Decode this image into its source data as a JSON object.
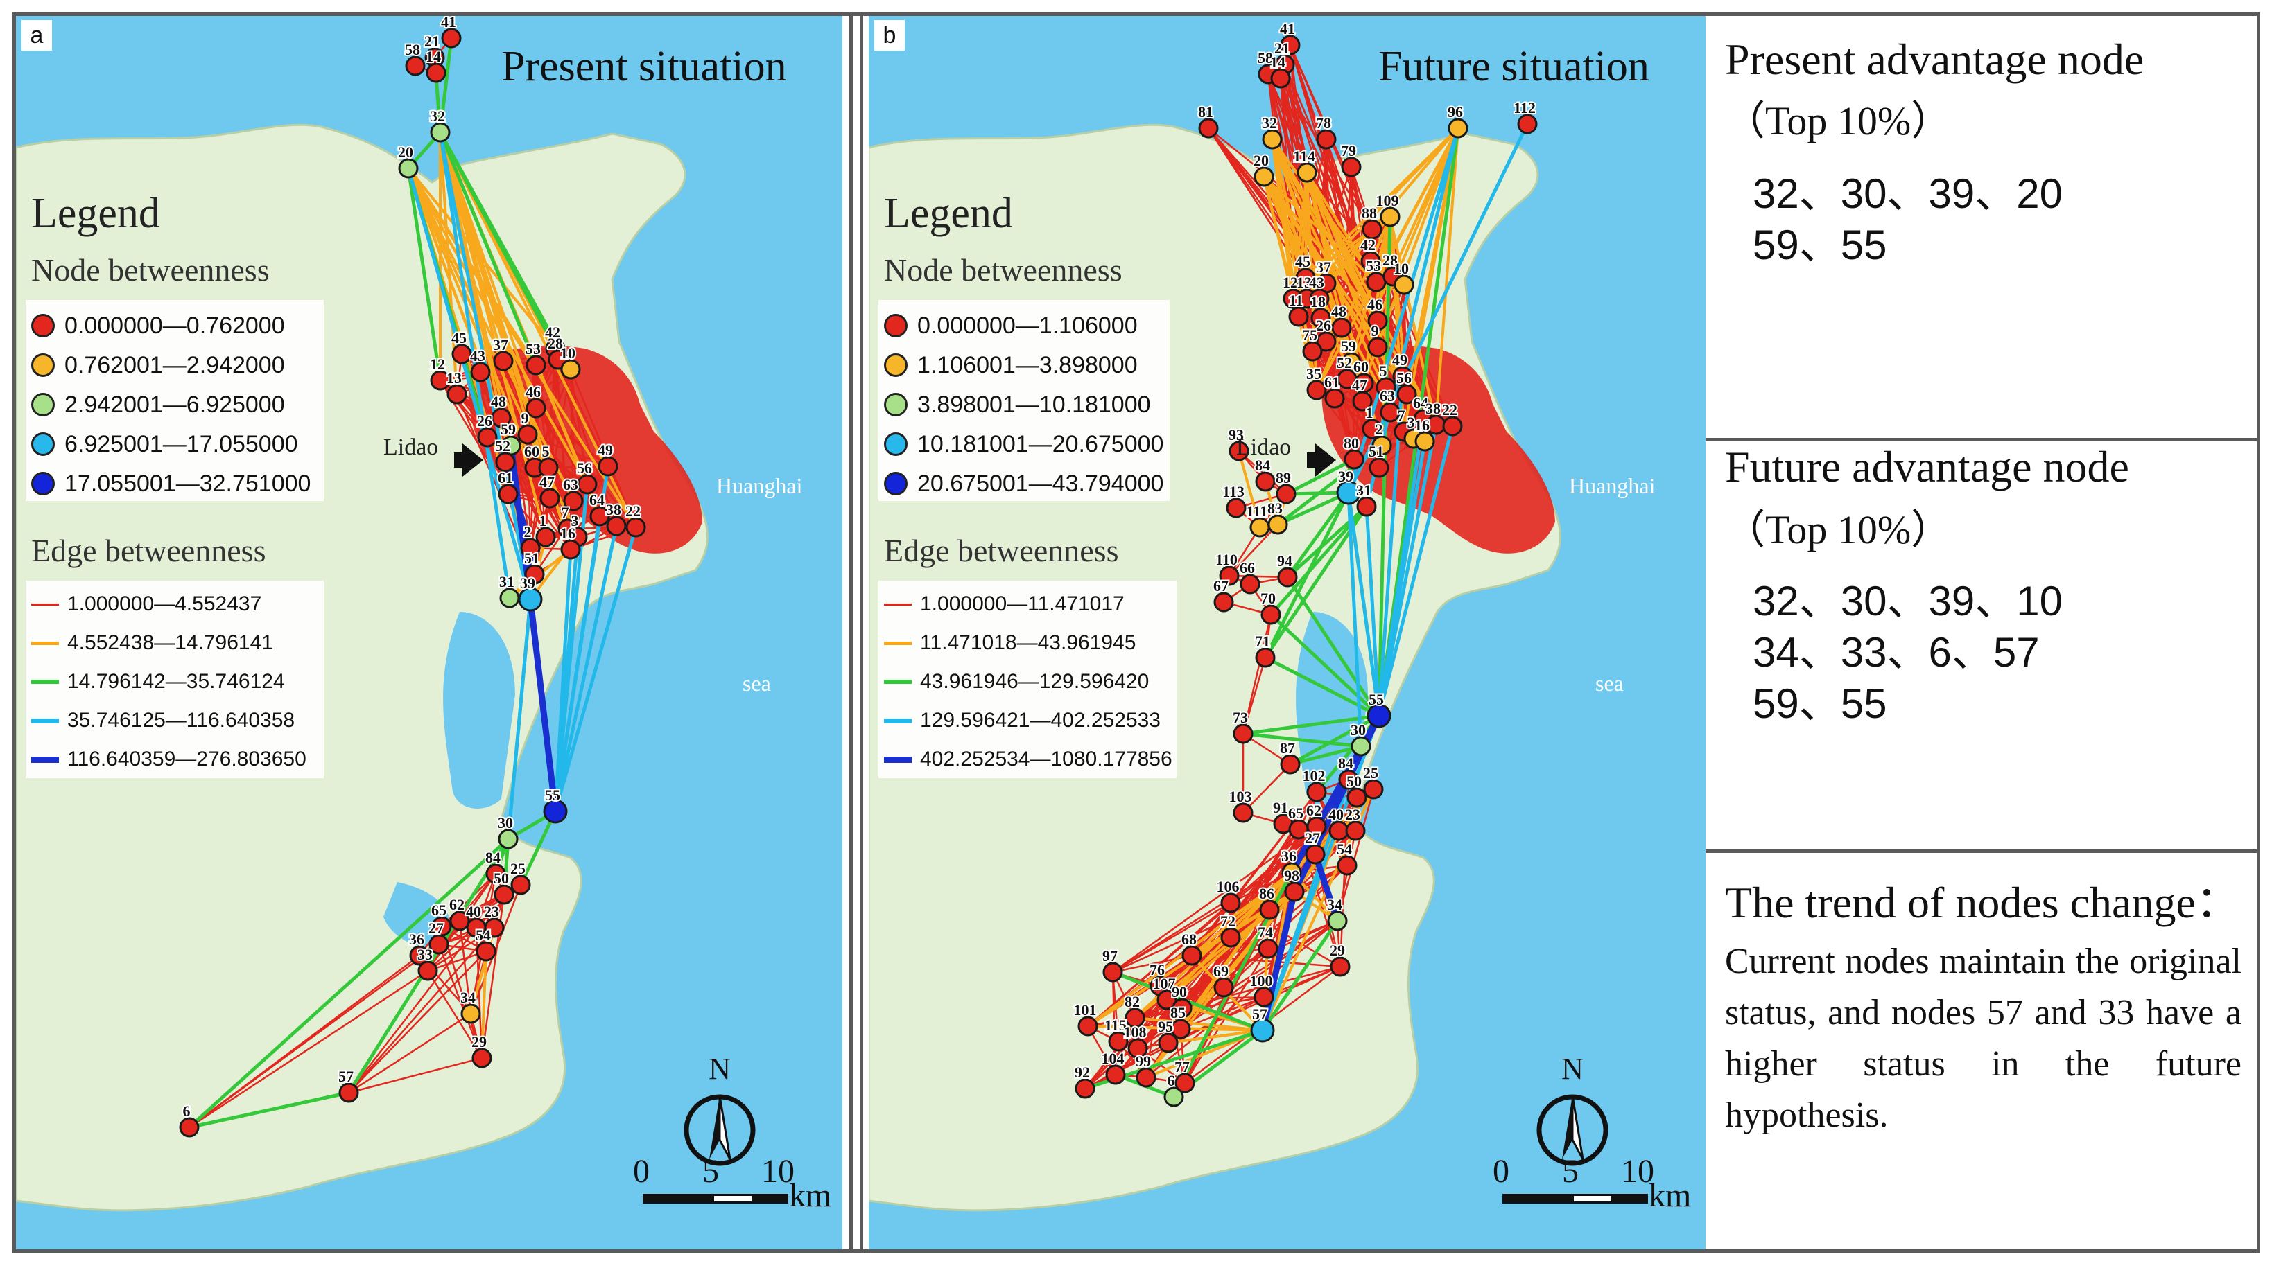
{
  "colors": {
    "sea": "#6fc9ef",
    "land": "#e4f0d6",
    "urban": "#e2271f",
    "node_red": "#e2271f",
    "node_orange": "#f7b52a",
    "node_green": "#a8e08a",
    "node_cyan": "#29b8ec",
    "node_blue": "#1424d8",
    "edge_red": "#e2271f",
    "edge_orange": "#f7a81c",
    "edge_green": "#35c83a",
    "edge_cyan": "#22b8ea",
    "edge_blue": "#1a2fd0"
  },
  "panel_a": {
    "tag": "a",
    "title": "Present situation",
    "legend_title": "Legend",
    "node_title": "Node betweenness",
    "node_classes": [
      "0.000000—0.762000",
      "0.762001—2.942000",
      "2.942001—6.925000",
      "6.925001—17.055000",
      "17.055001—32.751000"
    ],
    "edge_title": "Edge betweenness",
    "edge_classes": [
      "1.000000—4.552437",
      "4.552438—14.796141",
      "14.796142—35.746124",
      "35.746125—116.640358",
      "116.640359—276.803650"
    ],
    "lidao": "Lidao",
    "huanghai": "Huanghai",
    "sea": "sea",
    "north": "N",
    "scale_labels": [
      "0",
      "5",
      "10",
      "km"
    ]
  },
  "panel_b": {
    "tag": "b",
    "title": "Future situation",
    "legend_title": "Legend",
    "node_title": "Node betweenness",
    "node_classes": [
      "0.000000—1.106000",
      "1.106001—3.898000",
      "3.898001—10.181000",
      "10.181001—20.675000",
      "20.675001—43.794000"
    ],
    "edge_title": "Edge betweenness",
    "edge_classes": [
      "1.000000—11.471017",
      "11.471018—43.961945",
      "43.961946—129.596420",
      "129.596421—402.252533",
      "402.252534—1080.177856"
    ],
    "lidao": "Lidao",
    "huanghai": "Huanghai",
    "sea": "sea",
    "north": "N",
    "scale_labels": [
      "0",
      "5",
      "10",
      "km"
    ]
  },
  "right": {
    "present_heading": "Present advantage node",
    "present_sub": "（Top 10%）",
    "present_lines": [
      "32、30、39、20",
      "59、55"
    ],
    "future_heading": "Future advantage node",
    "future_sub": "（Top 10%）",
    "future_lines": [
      "32、30、39、10",
      "34、33、6、57",
      "59、55"
    ],
    "trend_heading": "The trend of nodes change：",
    "trend_text": "Current nodes maintain the original status, and nodes 57 and 33 have a higher status in the future hypothesis."
  },
  "network_a": {
    "nodes": [
      {
        "id": "41",
        "class": 0
      },
      {
        "id": "21",
        "class": 0
      },
      {
        "id": "58",
        "class": 0
      },
      {
        "id": "14",
        "class": 0
      },
      {
        "id": "32",
        "class": 2
      },
      {
        "id": "20",
        "class": 2
      },
      {
        "id": "42",
        "class": 0
      },
      {
        "id": "45",
        "class": 0
      },
      {
        "id": "37",
        "class": 0
      },
      {
        "id": "53",
        "class": 0
      },
      {
        "id": "28",
        "class": 0
      },
      {
        "id": "10",
        "class": 1
      },
      {
        "id": "12",
        "class": 0
      },
      {
        "id": "43",
        "class": 0
      },
      {
        "id": "13",
        "class": 0
      },
      {
        "id": "48",
        "class": 0
      },
      {
        "id": "46",
        "class": 0
      },
      {
        "id": "26",
        "class": 0
      },
      {
        "id": "59",
        "class": 2
      },
      {
        "id": "9",
        "class": 0
      },
      {
        "id": "52",
        "class": 0
      },
      {
        "id": "60",
        "class": 0
      },
      {
        "id": "5",
        "class": 0
      },
      {
        "id": "49",
        "class": 0
      },
      {
        "id": "56",
        "class": 0
      },
      {
        "id": "61",
        "class": 0
      },
      {
        "id": "47",
        "class": 0
      },
      {
        "id": "63",
        "class": 0
      },
      {
        "id": "64",
        "class": 0
      },
      {
        "id": "38",
        "class": 0
      },
      {
        "id": "22",
        "class": 0
      },
      {
        "id": "7",
        "class": 0
      },
      {
        "id": "1",
        "class": 0
      },
      {
        "id": "3",
        "class": 0
      },
      {
        "id": "16",
        "class": 0
      },
      {
        "id": "2",
        "class": 0
      },
      {
        "id": "51",
        "class": 0
      },
      {
        "id": "31",
        "class": 2
      },
      {
        "id": "39",
        "class": 3
      },
      {
        "id": "55",
        "class": 4
      },
      {
        "id": "30",
        "class": 2
      },
      {
        "id": "84",
        "class": 0
      },
      {
        "id": "50",
        "class": 0
      },
      {
        "id": "25",
        "class": 0
      },
      {
        "id": "65",
        "class": 0
      },
      {
        "id": "62",
        "class": 0
      },
      {
        "id": "40",
        "class": 0
      },
      {
        "id": "23",
        "class": 0
      },
      {
        "id": "27",
        "class": 0
      },
      {
        "id": "36",
        "class": 0
      },
      {
        "id": "33",
        "class": 0
      },
      {
        "id": "54",
        "class": 0
      },
      {
        "id": "34",
        "class": 1
      },
      {
        "id": "29",
        "class": 0
      },
      {
        "id": "57",
        "class": 0
      },
      {
        "id": "6",
        "class": 0
      }
    ]
  },
  "network_b": {
    "nodes": [
      {
        "id": "41",
        "class": 0
      },
      {
        "id": "21",
        "class": 0
      },
      {
        "id": "58",
        "class": 0
      },
      {
        "id": "14",
        "class": 0
      },
      {
        "id": "81",
        "class": 0
      },
      {
        "id": "32",
        "class": 1
      },
      {
        "id": "78",
        "class": 0
      },
      {
        "id": "96",
        "class": 1
      },
      {
        "id": "112",
        "class": 0
      },
      {
        "id": "20",
        "class": 1
      },
      {
        "id": "114",
        "class": 1
      },
      {
        "id": "79",
        "class": 0
      },
      {
        "id": "109",
        "class": 1
      },
      {
        "id": "88",
        "class": 0
      },
      {
        "id": "45",
        "class": 0
      },
      {
        "id": "42",
        "class": 0
      },
      {
        "id": "37",
        "class": 0
      },
      {
        "id": "53",
        "class": 0
      },
      {
        "id": "28",
        "class": 0
      },
      {
        "id": "10",
        "class": 1
      },
      {
        "id": "12",
        "class": 0
      },
      {
        "id": "13",
        "class": 0
      },
      {
        "id": "43",
        "class": 0
      },
      {
        "id": "11",
        "class": 0
      },
      {
        "id": "18",
        "class": 0
      },
      {
        "id": "48",
        "class": 0
      },
      {
        "id": "46",
        "class": 0
      },
      {
        "id": "26",
        "class": 0
      },
      {
        "id": "75",
        "class": 0
      },
      {
        "id": "59",
        "class": 1
      },
      {
        "id": "9",
        "class": 0
      },
      {
        "id": "52",
        "class": 0
      },
      {
        "id": "60",
        "class": 0
      },
      {
        "id": "5",
        "class": 0
      },
      {
        "id": "49",
        "class": 0
      },
      {
        "id": "35",
        "class": 0
      },
      {
        "id": "61",
        "class": 0
      },
      {
        "id": "47",
        "class": 0
      },
      {
        "id": "56",
        "class": 0
      },
      {
        "id": "63",
        "class": 0
      },
      {
        "id": "64",
        "class": 0
      },
      {
        "id": "38",
        "class": 0
      },
      {
        "id": "22",
        "class": 0
      },
      {
        "id": "1",
        "class": 0
      },
      {
        "id": "7",
        "class": 0
      },
      {
        "id": "3",
        "class": 1
      },
      {
        "id": "16",
        "class": 1
      },
      {
        "id": "2",
        "class": 1
      },
      {
        "id": "51",
        "class": 0
      },
      {
        "id": "80",
        "class": 0
      },
      {
        "id": "39",
        "class": 3
      },
      {
        "id": "31",
        "class": 0
      },
      {
        "id": "93",
        "class": 0
      },
      {
        "id": "84",
        "class": 0
      },
      {
        "id": "89",
        "class": 0
      },
      {
        "id": "113",
        "class": 0
      },
      {
        "id": "111",
        "class": 1
      },
      {
        "id": "83",
        "class": 1
      },
      {
        "id": "110",
        "class": 0
      },
      {
        "id": "94",
        "class": 0
      },
      {
        "id": "66",
        "class": 0
      },
      {
        "id": "67",
        "class": 0
      },
      {
        "id": "70",
        "class": 0
      },
      {
        "id": "71",
        "class": 0
      },
      {
        "id": "55",
        "class": 4
      },
      {
        "id": "73",
        "class": 0
      },
      {
        "id": "30",
        "class": 2
      },
      {
        "id": "87",
        "class": 0
      },
      {
        "id": "84b",
        "class": 0
      },
      {
        "id": "102",
        "class": 0
      },
      {
        "id": "50",
        "class": 0
      },
      {
        "id": "25",
        "class": 0
      },
      {
        "id": "103",
        "class": 0
      },
      {
        "id": "91",
        "class": 0
      },
      {
        "id": "65",
        "class": 0
      },
      {
        "id": "62",
        "class": 0
      },
      {
        "id": "40",
        "class": 0
      },
      {
        "id": "23",
        "class": 0
      },
      {
        "id": "27",
        "class": 0
      },
      {
        "id": "36",
        "class": 1
      },
      {
        "id": "54",
        "class": 0
      },
      {
        "id": "98",
        "class": 0
      },
      {
        "id": "34",
        "class": 2
      },
      {
        "id": "106",
        "class": 0
      },
      {
        "id": "86",
        "class": 0
      },
      {
        "id": "72",
        "class": 0
      },
      {
        "id": "74",
        "class": 0
      },
      {
        "id": "68",
        "class": 0
      },
      {
        "id": "29",
        "class": 0
      },
      {
        "id": "97",
        "class": 0
      },
      {
        "id": "76",
        "class": 0
      },
      {
        "id": "107",
        "class": 0
      },
      {
        "id": "90",
        "class": 0
      },
      {
        "id": "69",
        "class": 0
      },
      {
        "id": "82",
        "class": 0
      },
      {
        "id": "85",
        "class": 0
      },
      {
        "id": "100",
        "class": 0
      },
      {
        "id": "101",
        "class": 0
      },
      {
        "id": "115",
        "class": 0
      },
      {
        "id": "108",
        "class": 0
      },
      {
        "id": "95",
        "class": 0
      },
      {
        "id": "57",
        "class": 3
      },
      {
        "id": "92",
        "class": 0
      },
      {
        "id": "104",
        "class": 0
      },
      {
        "id": "99",
        "class": 0
      },
      {
        "id": "6",
        "class": 2
      },
      {
        "id": "77",
        "class": 0
      }
    ]
  }
}
